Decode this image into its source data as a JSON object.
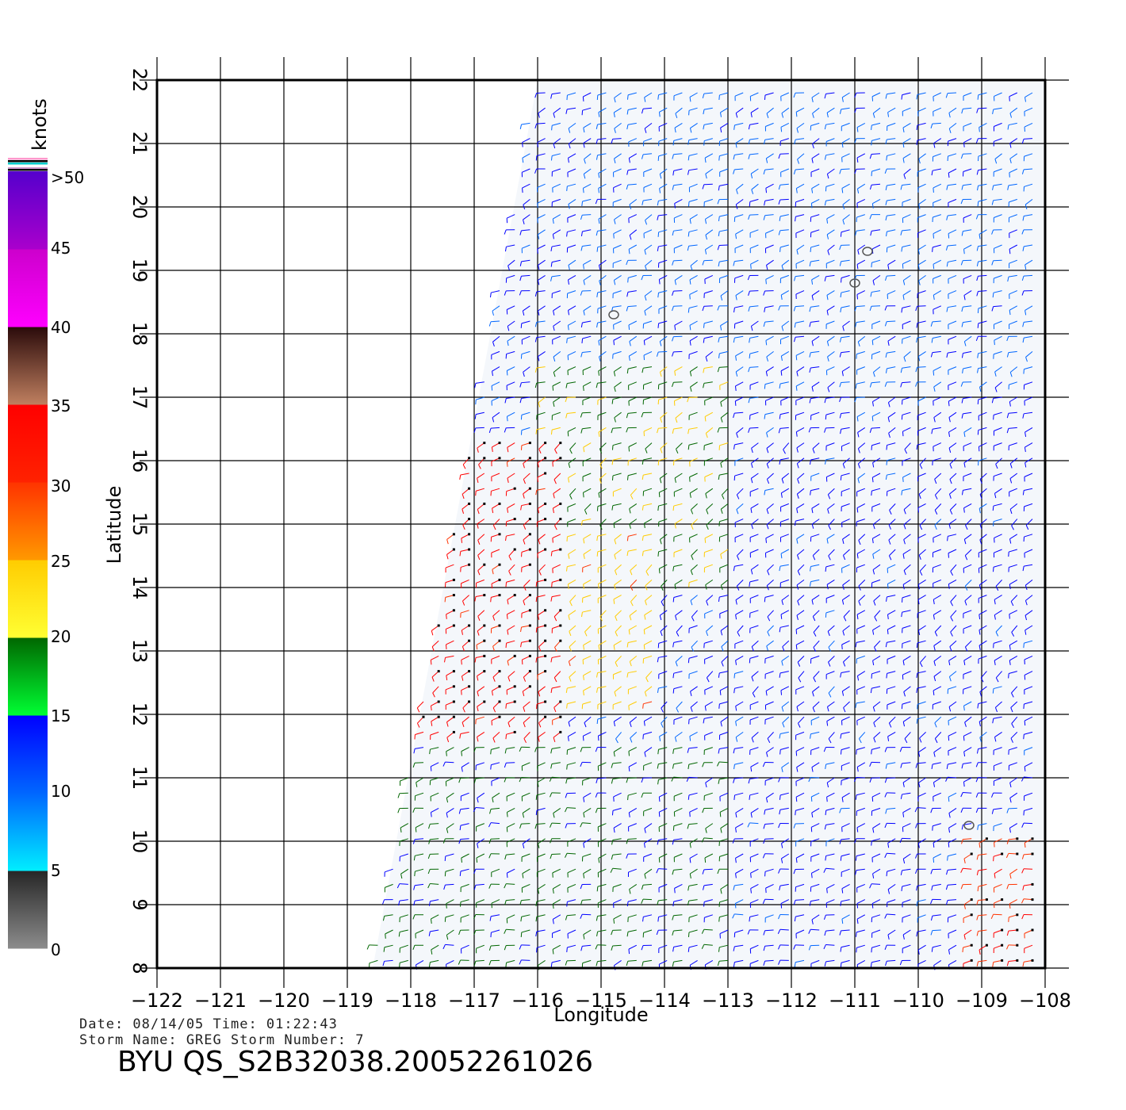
{
  "chart_data": {
    "type": "wind-barb-map",
    "xlabel": "Longitude",
    "ylabel": "Latitude",
    "xlim": [
      -122,
      -108
    ],
    "ylim": [
      8,
      22
    ],
    "x_ticks": [
      "−122",
      "−121",
      "−120",
      "−119",
      "−118",
      "−117",
      "−116",
      "−115",
      "−114",
      "−113",
      "−112",
      "−111",
      "−110",
      "−109",
      "−108"
    ],
    "y_ticks": [
      "8",
      "9",
      "10",
      "11",
      "12",
      "13",
      "14",
      "15",
      "16",
      "17",
      "18",
      "19",
      "20",
      "21",
      "22"
    ],
    "grid": true,
    "colorbar": {
      "title": "knots",
      "labels": [
        ">50",
        "45",
        "40",
        "35",
        "30",
        "25",
        "20",
        "15",
        "10",
        "5",
        "0"
      ],
      "bands": [
        {
          "min": 0,
          "max": 5,
          "top": "#262626",
          "bottom": "#8c8c8c"
        },
        {
          "min": 5,
          "max": 10,
          "top": "#0066ff",
          "bottom": "#00eeff"
        },
        {
          "min": 10,
          "max": 15,
          "top": "#0000ff",
          "bottom": "#0066ff"
        },
        {
          "min": 15,
          "max": 20,
          "top": "#006600",
          "bottom": "#00ff33"
        },
        {
          "min": 20,
          "max": 25,
          "top": "#ffcc00",
          "bottom": "#ffff33"
        },
        {
          "min": 25,
          "max": 30,
          "top": "#ff3300",
          "bottom": "#ff9900"
        },
        {
          "min": 30,
          "max": 35,
          "top": "#ff0000",
          "bottom": "#ff2200"
        },
        {
          "min": 35,
          "max": 40,
          "top": "#2a0a0a",
          "bottom": "#c08060"
        },
        {
          "min": 40,
          "max": 45,
          "top": "#cc00cc",
          "bottom": "#ff00ff"
        },
        {
          "min": 45,
          "max": 50,
          "top": "#5500cc",
          "bottom": "#aa00cc"
        }
      ]
    },
    "swath_corners_lon_lat": [
      [
        -118.6,
        8
      ],
      [
        -116.0,
        22
      ],
      [
        -108,
        22
      ],
      [
        -108,
        8
      ]
    ],
    "wind_regions": [
      {
        "lon_min": -115.5,
        "lon_max": -108,
        "lat_min": 17,
        "lat_max": 22,
        "speed_kt": 9
      },
      {
        "lon_min": -113,
        "lon_max": -108,
        "lat_min": 8,
        "lat_max": 17,
        "speed_kt": 12
      },
      {
        "lon_min": -116,
        "lon_max": -113,
        "lat_min": 14,
        "lat_max": 17.5,
        "speed_kt": 19
      },
      {
        "lon_min": -117,
        "lon_max": -114,
        "lat_min": 12,
        "lat_max": 15,
        "speed_kt": 23
      },
      {
        "lon_min": -118,
        "lon_max": -115.5,
        "lat_min": 11.5,
        "lat_max": 16.5,
        "speed_kt": 32
      },
      {
        "lon_min": -118.6,
        "lon_max": -113,
        "lat_min": 8,
        "lat_max": 11.5,
        "speed_kt": 16
      },
      {
        "lon_min": -109.2,
        "lon_max": -108,
        "lat_min": 8,
        "lat_max": 10.2,
        "speed_kt": 30
      }
    ],
    "islands_lon_lat": [
      [
        -114.8,
        18.3
      ],
      [
        -111.0,
        18.8
      ],
      [
        -110.8,
        19.3
      ],
      [
        -109.2,
        10.25
      ]
    ],
    "meta": {
      "line1": "Date: 08/14/05   Time: 01:22:43",
      "line2": "Storm Name: GREG   Storm Number: 7",
      "title": "BYU QS_S2B32038.20052261026"
    }
  }
}
